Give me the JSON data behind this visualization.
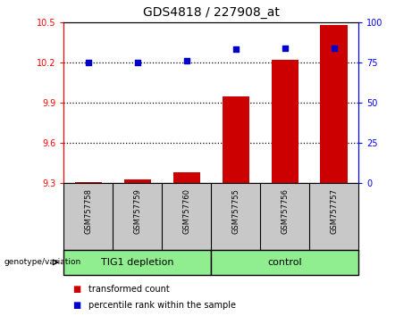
{
  "title": "GDS4818 / 227908_at",
  "samples": [
    "GSM757758",
    "GSM757759",
    "GSM757760",
    "GSM757755",
    "GSM757756",
    "GSM757757"
  ],
  "bar_values": [
    9.31,
    9.33,
    9.38,
    9.95,
    10.22,
    10.48
  ],
  "bar_bottom": 9.3,
  "scatter_values": [
    75,
    75,
    76,
    83,
    84,
    84
  ],
  "ylim_left": [
    9.3,
    10.5
  ],
  "ylim_right": [
    0,
    100
  ],
  "yticks_left": [
    9.3,
    9.6,
    9.9,
    10.2,
    10.5
  ],
  "yticks_right": [
    0,
    25,
    50,
    75,
    100
  ],
  "hgrid_lines": [
    9.6,
    9.9,
    10.2
  ],
  "bar_color": "#CC0000",
  "scatter_color": "#0000CC",
  "sample_bg_color": "#C8C8C8",
  "group_bg_color": "#90EE90",
  "legend_bar_label": "transformed count",
  "legend_scatter_label": "percentile rank within the sample",
  "genotype_label": "genotype/variation",
  "group_labels": [
    "TIG1 depletion",
    "control"
  ],
  "group_split": 0.5,
  "title_fontsize": 10,
  "tick_fontsize": 7,
  "sample_fontsize": 6,
  "group_fontsize": 8,
  "legend_fontsize": 7
}
